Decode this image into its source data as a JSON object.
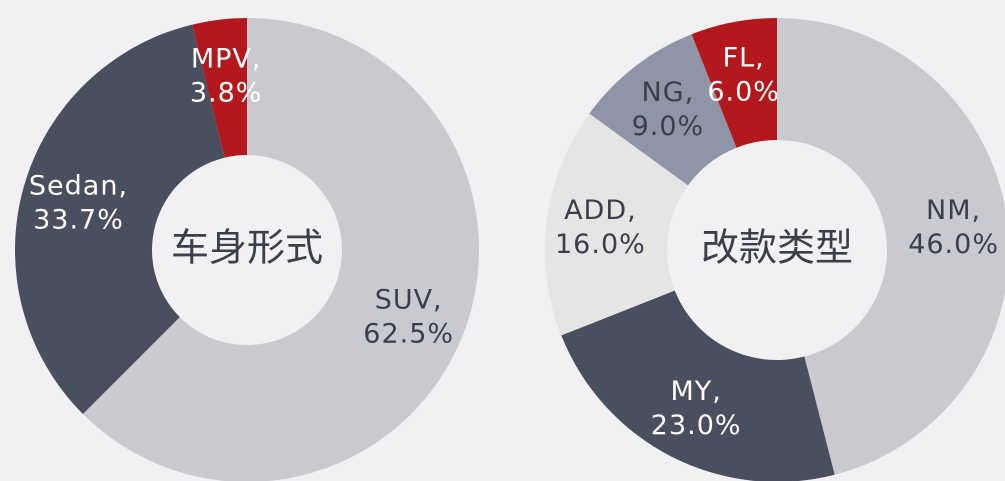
{
  "chart_data": [
    {
      "type": "donut",
      "title": "车身形式",
      "categories": [
        "SUV,",
        "Sedan,",
        "MPV,"
      ],
      "values": [
        62.5,
        33.7,
        3.8
      ],
      "value_labels": [
        "62.5%",
        "33.7%",
        "3.8%"
      ],
      "colors": [
        "#c9cacf",
        "#4a4f5f",
        "#b3191c"
      ],
      "label_colors": [
        "#3c3f4a",
        "#ffffff",
        "#ffffff"
      ]
    },
    {
      "type": "donut",
      "title": "改款类型",
      "categories": [
        "NM,",
        "MY,",
        "ADD,",
        "NG,",
        "FL,"
      ],
      "values": [
        46.0,
        23.0,
        16.0,
        9.0,
        6.0
      ],
      "value_labels": [
        "46.0%",
        "23.0%",
        "16.0%",
        "9.0%",
        "6.0%"
      ],
      "colors": [
        "#c9cacf",
        "#4a4f5f",
        "#e5e5e3",
        "#8f94a6",
        "#b3191c"
      ],
      "label_colors": [
        "#3c3f4a",
        "#ffffff",
        "#3c3f4a",
        "#3c3f4a",
        "#ffffff"
      ]
    }
  ]
}
